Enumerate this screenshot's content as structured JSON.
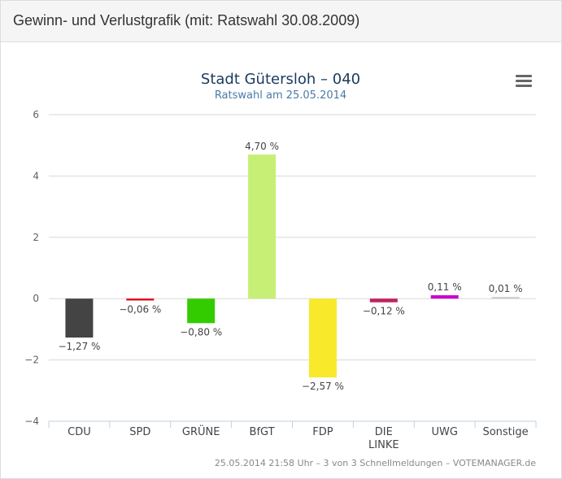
{
  "panel": {
    "title": "Gewinn- und Verlustgrafik (mit: Ratswahl 30.08.2009)"
  },
  "export_menu_icon": "hamburger-menu-icon",
  "chart_data": {
    "type": "bar",
    "title": "Stadt Gütersloh – 040",
    "subtitle": "Ratswahl am 25.05.2014",
    "categories": [
      "CDU",
      "SPD",
      "GRÜNE",
      "BfGT",
      "FDP",
      "DIE LINKE",
      "UWG",
      "Sonstige"
    ],
    "category_lines": [
      [
        "CDU"
      ],
      [
        "SPD"
      ],
      [
        "GRÜNE"
      ],
      [
        "BfGT"
      ],
      [
        "FDP"
      ],
      [
        "DIE",
        "LINKE"
      ],
      [
        "UWG"
      ],
      [
        "Sonstige"
      ]
    ],
    "values": [
      -1.27,
      -0.06,
      -0.8,
      4.7,
      -2.57,
      -0.12,
      0.11,
      0.01
    ],
    "value_labels": [
      "−1,27 %",
      "−0,06 %",
      "−0,80 %",
      "4,70 %",
      "−2,57 %",
      "−0,12 %",
      "0,11 %",
      "0,01 %"
    ],
    "colors": [
      "#444444",
      "#e3000f",
      "#33cc00",
      "#c8ef75",
      "#f8e92b",
      "#c0225e",
      "#cc00cc",
      "#cccccc"
    ],
    "ylim": [
      -4,
      6
    ],
    "yticks": [
      6,
      4,
      2,
      0,
      -2,
      -4
    ],
    "ytick_labels": [
      "6",
      "4",
      "2",
      "0",
      "−2",
      "−4"
    ],
    "grid": true,
    "credits": "25.05.2014 21:58 Uhr – 3 von 3 Schnellmeldungen – VOTEMANAGER.de"
  }
}
